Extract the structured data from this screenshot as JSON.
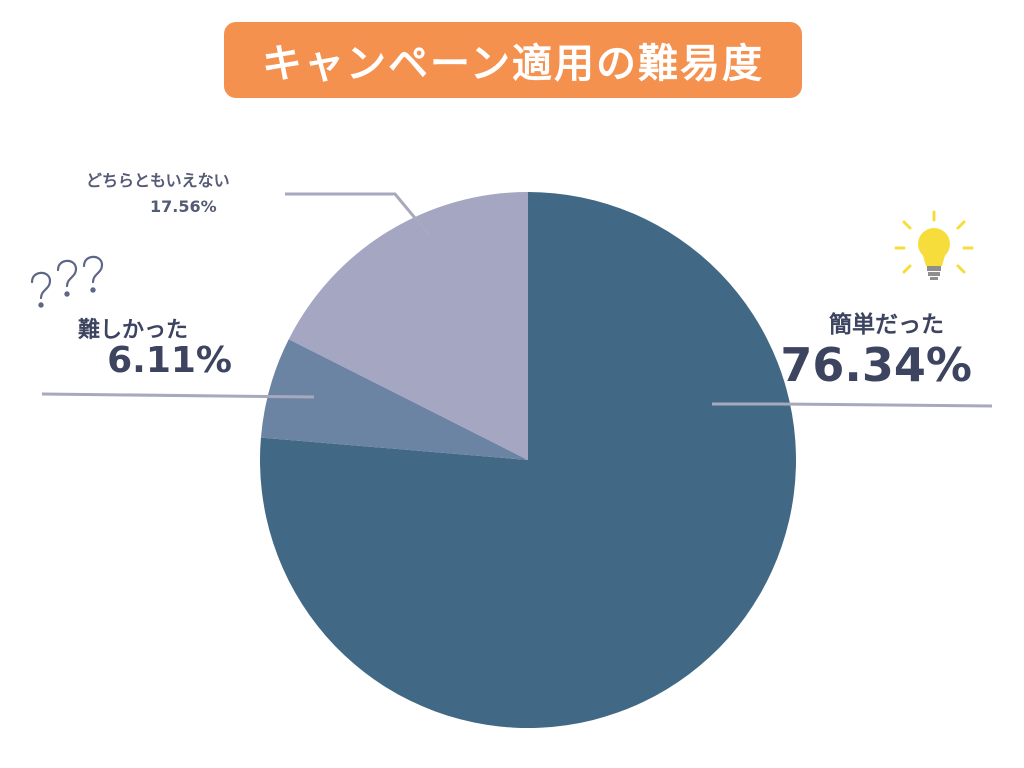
{
  "title": "キャンペーン適用の難易度",
  "colors": {
    "title_bg": "#f4914f",
    "easy": "#416884",
    "hard": "#6b84a4",
    "neutral": "#a4a6c2",
    "label_text": "#3d4460",
    "leader_line": "#a7a9bd",
    "bulb": "#f7dd3c"
  },
  "icons": {
    "easy": "lightbulb-icon",
    "hard": "question-marks-icon"
  },
  "labels": {
    "easy_name": "簡単だった",
    "easy_value": "76.34%",
    "hard_name": "難しかった",
    "hard_value": "6.11%",
    "neutral_name": "どちらともいえない",
    "neutral_value": "17.56%"
  },
  "chart_data": {
    "type": "pie",
    "title": "キャンペーン適用の難易度",
    "slices": [
      {
        "label": "簡単だった",
        "value": 76.34,
        "color": "#416884"
      },
      {
        "label": "難しかった",
        "value": 6.11,
        "color": "#6b84a4"
      },
      {
        "label": "どちらともいえない",
        "value": 17.56,
        "color": "#a4a6c2"
      }
    ],
    "start": "12 o'clock",
    "direction": "clockwise"
  }
}
